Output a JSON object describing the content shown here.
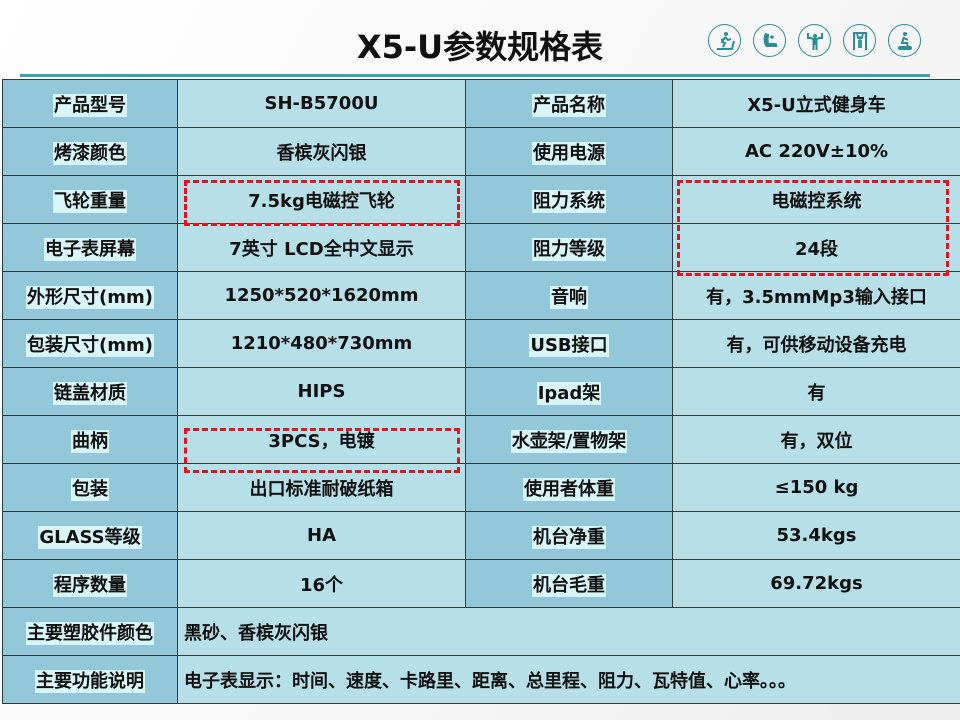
{
  "title": "X5-U参数规格表",
  "header_icons": [
    "treadmill-icon",
    "massage-chair-icon",
    "dumbbell-lift-icon",
    "pull-up-bar-icon",
    "exercise-bike-icon"
  ],
  "colors": {
    "accent": "#3aa3b0",
    "label_bg": "#92c8d9",
    "value_bg": "#b6dfe8",
    "highlight_border": "#e0141e"
  },
  "rows": [
    {
      "l1": "产品型号",
      "v1": "SH-B5700U",
      "l2": "产品名称",
      "v2": "X5-U立式健身车"
    },
    {
      "l1": "烤漆颜色",
      "v1": "香槟灰闪银",
      "l2": "使用电源",
      "v2": "AC 220V±10%"
    },
    {
      "l1": "飞轮重量",
      "v1": "7.5kg电磁控飞轮",
      "l2": "阻力系统",
      "v2": "电磁控系统"
    },
    {
      "l1": "电子表屏幕",
      "v1": "7英寸 LCD全中文显示",
      "l2": "阻力等级",
      "v2": "24段"
    },
    {
      "l1": "外形尺寸(mm)",
      "v1": "1250*520*1620mm",
      "l2": "音响",
      "v2": "有，3.5mmMp3输入接口"
    },
    {
      "l1": "包装尺寸(mm)",
      "v1": "1210*480*730mm",
      "l2": "USB接口",
      "v2": "有，可供移动设备充电"
    },
    {
      "l1": "链盖材质",
      "v1": "HIPS",
      "l2": "Ipad架",
      "v2": "有"
    },
    {
      "l1": "曲柄",
      "v1": "3PCS，电镀",
      "l2": "水壶架/置物架",
      "v2": "有，双位"
    },
    {
      "l1": "包装",
      "v1": "出口标准耐破纸箱",
      "l2": "使用者体重",
      "v2": "≤150 kg"
    },
    {
      "l1": "GLASS等级",
      "v1": "HA",
      "l2": "机台净重",
      "v2": "53.4kgs"
    },
    {
      "l1": "程序数量",
      "v1": "16个",
      "l2": "机台毛重",
      "v2": "69.72kgs"
    }
  ],
  "wide_rows": [
    {
      "label": "主要塑胶件颜色",
      "value": "黑砂、香槟灰闪银"
    },
    {
      "label": "主要功能说明",
      "value": "电子表显示：时间、速度、卡路里、距离、总里程、阻力、瓦特值、心率。。。"
    }
  ]
}
